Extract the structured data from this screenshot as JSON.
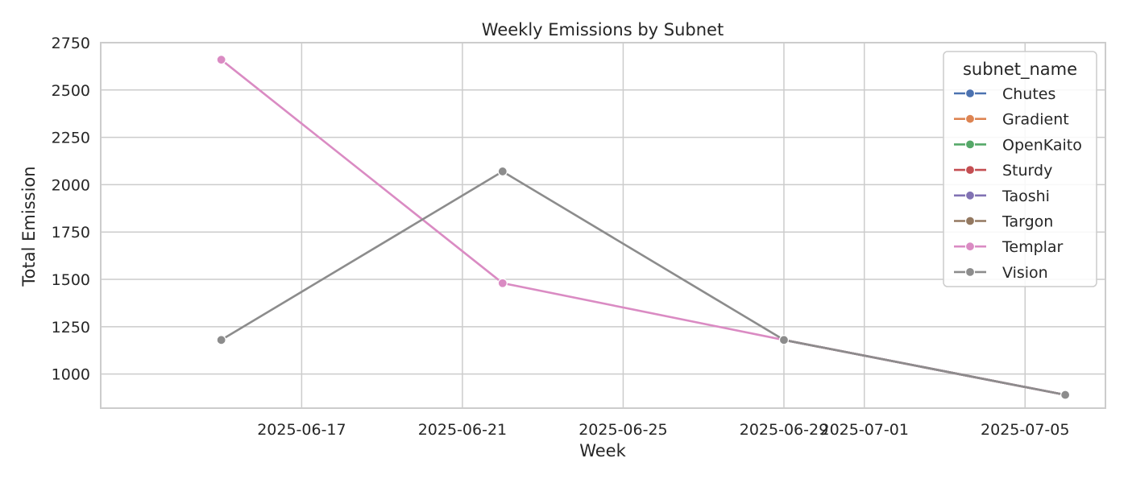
{
  "chart_data": {
    "type": "line",
    "title": "Weekly Emissions by Subnet",
    "xlabel": "Week",
    "ylabel": "Total Emission",
    "ylim": [
      820,
      2750
    ],
    "xlim": [
      "2025-06-12",
      "2025-07-07"
    ],
    "grid": true,
    "x_tick_labels": [
      "2025-06-17",
      "2025-06-21",
      "2025-06-25",
      "2025-06-29",
      "2025-07-01",
      "2025-07-05"
    ],
    "y_tick_labels": [
      "1000",
      "1250",
      "1500",
      "1750",
      "2000",
      "2250",
      "2500",
      "2750"
    ],
    "y_ticks": [
      1000,
      1250,
      1500,
      1750,
      2000,
      2250,
      2500,
      2750
    ],
    "legend": {
      "title": "subnet_name",
      "position": "top-right"
    },
    "x": [
      "2025-06-15",
      "2025-06-22",
      "2025-06-29",
      "2025-07-06"
    ],
    "series": [
      {
        "name": "Chutes",
        "color": "#4c72b0",
        "values": [
          null,
          null,
          1180,
          890
        ]
      },
      {
        "name": "Gradient",
        "color": "#dd8452",
        "values": [
          null,
          null,
          1180,
          890
        ]
      },
      {
        "name": "OpenKaito",
        "color": "#55a868",
        "values": [
          null,
          null,
          1180,
          890
        ]
      },
      {
        "name": "Sturdy",
        "color": "#c44e52",
        "values": [
          null,
          null,
          1180,
          890
        ]
      },
      {
        "name": "Taoshi",
        "color": "#8172b3",
        "values": [
          null,
          null,
          1180,
          890
        ]
      },
      {
        "name": "Targon",
        "color": "#937860",
        "values": [
          null,
          null,
          1180,
          890
        ]
      },
      {
        "name": "Templar",
        "color": "#da8bc3",
        "values": [
          2660,
          1480,
          1180,
          890
        ]
      },
      {
        "name": "Vision",
        "color": "#8c8c8c",
        "values": [
          1180,
          2070,
          1180,
          890
        ]
      }
    ]
  }
}
